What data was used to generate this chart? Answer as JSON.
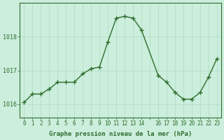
{
  "x": [
    0,
    1,
    2,
    3,
    4,
    5,
    6,
    7,
    8,
    9,
    10,
    11,
    12,
    13,
    14,
    16,
    17,
    18,
    19,
    20,
    21,
    22,
    23
  ],
  "y": [
    1016.05,
    1016.3,
    1016.3,
    1016.45,
    1016.65,
    1016.65,
    1016.65,
    1016.9,
    1017.05,
    1017.1,
    1017.85,
    1018.55,
    1018.6,
    1018.55,
    1018.2,
    1016.85,
    1016.65,
    1016.35,
    1016.15,
    1016.15,
    1016.35,
    1016.8,
    1017.35
  ],
  "line_color": "#2d6e2d",
  "marker": "+",
  "marker_color": "#2d6e2d",
  "bg_color": "#cceedd",
  "grid_color": "#aaddbb",
  "axis_color": "#2d6e2d",
  "tick_color": "#2d6e2d",
  "xlabel": "Graphe pression niveau de la mer (hPa)",
  "xlabel_color": "#2d6e2d",
  "ylim": [
    1015.6,
    1019.0
  ],
  "yticks": [
    1016,
    1017,
    1018
  ],
  "xticks_all": [
    0,
    1,
    2,
    3,
    4,
    5,
    6,
    7,
    8,
    9,
    10,
    11,
    12,
    13,
    14,
    15,
    16,
    17,
    18,
    19,
    20,
    21,
    22,
    23
  ],
  "xtick_labels_all": [
    "0",
    "1",
    "2",
    "3",
    "4",
    "5",
    "6",
    "7",
    "8",
    "9",
    "10",
    "11",
    "12",
    "13",
    "14",
    "",
    "16",
    "17",
    "18",
    "19",
    "20",
    "21",
    "22",
    "23"
  ]
}
